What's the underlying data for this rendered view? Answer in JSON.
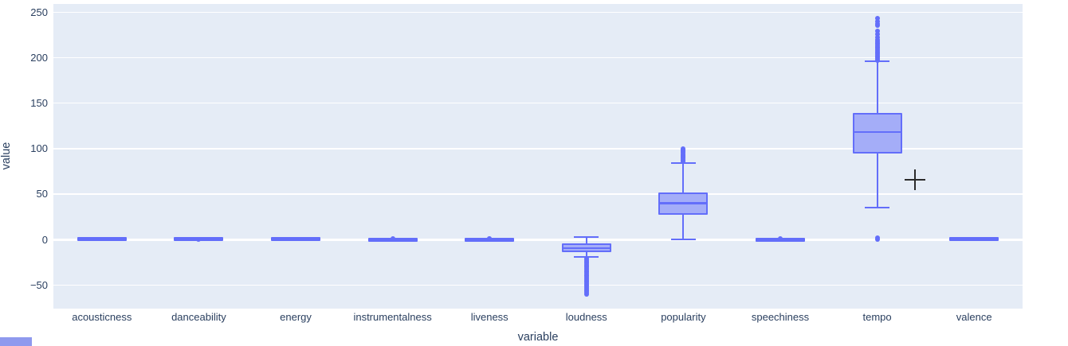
{
  "chart": {
    "plot_bgcolor": "#e5ecf6",
    "paper_bgcolor": "#ffffff",
    "grid_color": "#ffffff",
    "box_line_color": "#636efa",
    "box_fill_color": "#a4adf8",
    "text_color": "#2a3f5f",
    "crosshair_color": "#2b2b2b",
    "partial_widget_color": "#8f99ee"
  },
  "chart_data": {
    "type": "box",
    "title": "",
    "xlabel": "variable",
    "ylabel": "value",
    "legend": "none",
    "grid": true,
    "yticks": [
      -50,
      0,
      50,
      100,
      150,
      200,
      250
    ],
    "ylim": [
      -76,
      259
    ],
    "categories": [
      "acousticness",
      "danceability",
      "energy",
      "instrumentalness",
      "liveness",
      "loudness",
      "popularity",
      "speechiness",
      "tempo",
      "valence"
    ],
    "series": [
      {
        "name": "acousticness",
        "lowerfence": 0,
        "q1": 0.04,
        "median": 0.3,
        "q3": 0.7,
        "upperfence": 1,
        "outliers": []
      },
      {
        "name": "danceability",
        "lowerfence": 0.1,
        "q1": 0.45,
        "median": 0.58,
        "q3": 0.7,
        "upperfence": 0.98,
        "outliers": [
          0.02
        ]
      },
      {
        "name": "energy",
        "lowerfence": 0,
        "q1": 0.35,
        "median": 0.55,
        "q3": 0.75,
        "upperfence": 1,
        "outliers": []
      },
      {
        "name": "instrumentalness",
        "lowerfence": 0,
        "q1": 0,
        "median": 0.01,
        "q3": 0.2,
        "upperfence": 0.5,
        "outliers": [
          0.92
        ]
      },
      {
        "name": "liveness",
        "lowerfence": 0.02,
        "q1": 0.1,
        "median": 0.13,
        "q3": 0.27,
        "upperfence": 0.5,
        "outliers": [
          0.92,
          0.95
        ]
      },
      {
        "name": "loudness",
        "lowerfence": -19,
        "q1": -12,
        "median": -9.5,
        "q3": -6,
        "upperfence": 2.5,
        "outliers": [
          -21,
          -22.5,
          -24,
          -25.5,
          -27,
          -28.5,
          -30,
          -31.5,
          -33,
          -34.5,
          -36,
          -37.5,
          -39,
          -40.5,
          -42,
          -43.5,
          -45,
          -46.5,
          -48,
          -49.5,
          -51,
          -52.5,
          -54,
          -55.5,
          -57,
          -58.5,
          -60
        ]
      },
      {
        "name": "popularity",
        "lowerfence": 0,
        "q1": 29,
        "median": 40,
        "q3": 50,
        "upperfence": 84,
        "outliers": [
          86,
          87,
          88,
          89,
          90,
          91,
          92,
          93,
          94,
          95,
          96,
          97,
          98,
          99,
          100
        ]
      },
      {
        "name": "speechiness",
        "lowerfence": 0,
        "q1": 0.03,
        "median": 0.05,
        "q3": 0.09,
        "upperfence": 0.18,
        "outliers": [
          0.6
        ]
      },
      {
        "name": "tempo",
        "lowerfence": 35,
        "q1": 96,
        "median": 118,
        "q3": 137,
        "upperfence": 196,
        "outliers": [
          0,
          2,
          197,
          198.5,
          200,
          201.5,
          203,
          204.5,
          206,
          207.5,
          209,
          210.5,
          212,
          213.5,
          215,
          216.5,
          218,
          220,
          222,
          226,
          229,
          235,
          237,
          240,
          243
        ]
      },
      {
        "name": "valence",
        "lowerfence": 0,
        "q1": 0.3,
        "median": 0.5,
        "q3": 0.72,
        "upperfence": 1,
        "outliers": []
      }
    ]
  }
}
